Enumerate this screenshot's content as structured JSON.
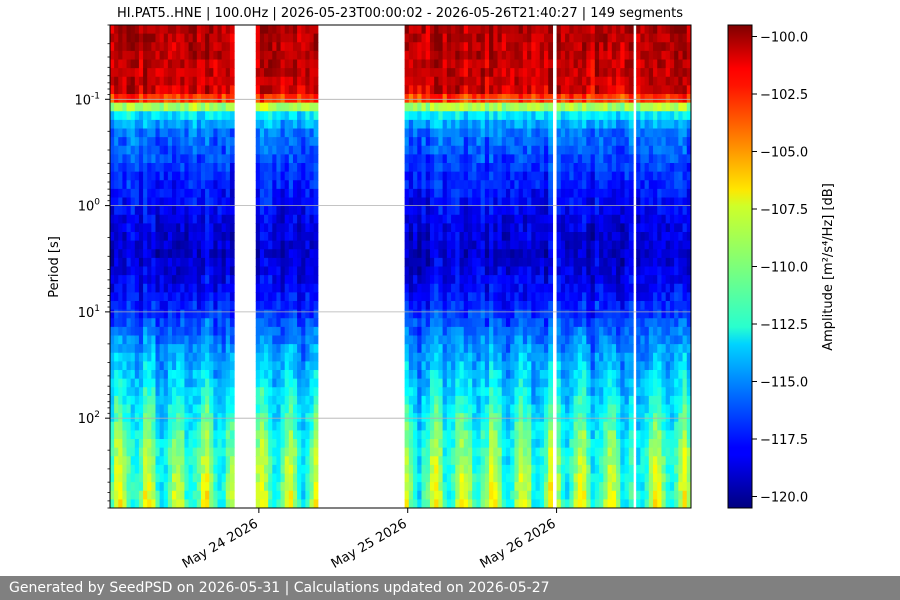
{
  "chart_data": {
    "type": "heatmap",
    "title": "HI.PAT5..HNE | 100.0Hz | 2026-05-23T00:00:02 - 2026-05-26T21:40:27 | 149 segments",
    "xlabel": "",
    "ylabel": "Period [s]",
    "x_range": [
      "2026-05-23T00:00:02",
      "2026-05-26T21:40:27"
    ],
    "x_ticks": [
      {
        "date": "2026-05-24",
        "label": "May 24 2026"
      },
      {
        "date": "2026-05-25",
        "label": "May 25 2026"
      },
      {
        "date": "2026-05-26",
        "label": "May 26 2026"
      }
    ],
    "y_scale": "log",
    "y_inverted": true,
    "y_range_seconds": [
      0.02,
      700
    ],
    "y_ticks": [
      {
        "exp": "-1",
        "value": 0.1
      },
      {
        "exp": "0",
        "value": 1
      },
      {
        "exp": "1",
        "value": 10
      },
      {
        "exp": "2",
        "value": 100
      }
    ],
    "grid": "horizontal",
    "colorbar": {
      "label": "Amplitude",
      "unit": "[m²/s⁴/Hz] [dB]",
      "range": [
        -120.5,
        -99.5
      ],
      "colormap": "jet",
      "ticks": [
        "-100.0",
        "-102.5",
        "-105.0",
        "-107.5",
        "-110.0",
        "-112.5",
        "-115.0",
        "-117.5",
        "-120.0"
      ]
    },
    "data_coverage": [
      {
        "start": "2026-05-23T00:00:02",
        "end": "2026-05-23T20:00:00"
      },
      {
        "start": "2026-05-23T23:30:00",
        "end": "2026-05-24T09:30:00"
      },
      {
        "start": "2026-05-24T23:30:00",
        "end": "2026-05-25T23:20:00"
      },
      {
        "start": "2026-05-26T00:00:00",
        "end": "2026-05-26T12:20:00"
      },
      {
        "start": "2026-05-26T12:50:00",
        "end": "2026-05-26T21:40:27"
      }
    ],
    "spectrum_profile_db": [
      {
        "period": 0.02,
        "db": -100.5
      },
      {
        "period": 0.08,
        "db": -101.2
      },
      {
        "period": 0.1,
        "db": -103.5
      },
      {
        "period": 0.13,
        "db": -112.5
      },
      {
        "period": 0.2,
        "db": -115.5
      },
      {
        "period": 0.5,
        "db": -117.0
      },
      {
        "period": 1.5,
        "db": -118.5
      },
      {
        "period": 3,
        "db": -119.0
      },
      {
        "period": 8,
        "db": -117.5
      },
      {
        "period": 20,
        "db": -115.0
      },
      {
        "period": 60,
        "db": -113.0
      },
      {
        "period": 200,
        "db": -111.0
      },
      {
        "period": 700,
        "db": -110.0
      }
    ]
  },
  "footer": {
    "text": "Generated by SeedPSD on 2026-05-31 | Calculations updated on 2026-05-27"
  }
}
